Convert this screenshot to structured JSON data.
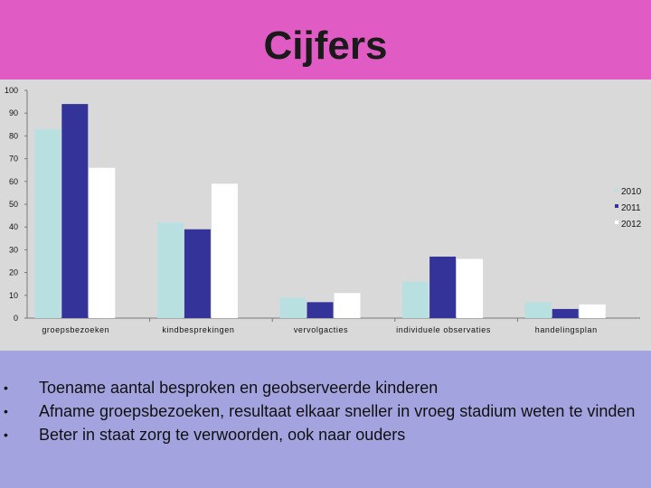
{
  "slide": {
    "title": "Cijfers"
  },
  "colors": {
    "title_bar": "#E05CC4",
    "chart_bg": "#D9D9D9",
    "bottom_bg": "#A3A3DF"
  },
  "chart_data": {
    "type": "bar",
    "title": "",
    "xlabel": "",
    "ylabel": "",
    "ylim": [
      0,
      100
    ],
    "yticks": [
      0,
      10,
      20,
      30,
      40,
      50,
      60,
      70,
      80,
      90,
      100
    ],
    "grid": false,
    "legend_position": "right",
    "categories": [
      "groepsbezoeken",
      "kindbesprekingen",
      "vervolgacties",
      "individuele observaties",
      "handelingsplan"
    ],
    "series": [
      {
        "name": "2010",
        "color": "#B8E0E0",
        "values": [
          83,
          42,
          9,
          16,
          7
        ]
      },
      {
        "name": "2011",
        "color": "#333399",
        "values": [
          94,
          39,
          7,
          27,
          4
        ]
      },
      {
        "name": "2012",
        "color": "#FFFFFF",
        "values": [
          66,
          59,
          11,
          26,
          6
        ]
      }
    ]
  },
  "bullets": [
    "Toename aantal besproken en geobserveerde kinderen",
    "Afname groepsbezoeken, resultaat elkaar sneller in vroeg stadium weten te vinden",
    "Beter in staat zorg te verwoorden, ook naar ouders"
  ],
  "bullet_symbol": "•"
}
